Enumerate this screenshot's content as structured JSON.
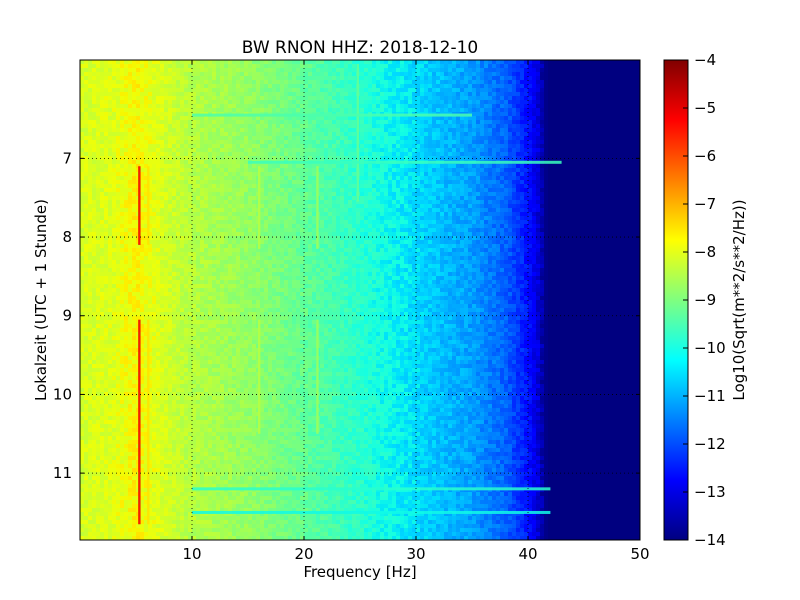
{
  "chart_data": {
    "type": "heatmap",
    "title": "BW RNON HHZ: 2018-12-10",
    "xlabel": "Frequency [Hz]",
    "ylabel": "Lokalzeit (UTC + 1 Stunde)",
    "xlim": [
      0,
      50
    ],
    "ylim": [
      5.75,
      11.85
    ],
    "y_inverted": true,
    "x_ticks": [
      "10",
      "20",
      "30",
      "40",
      "50"
    ],
    "x_tick_values": [
      10,
      20,
      30,
      40,
      50
    ],
    "y_ticks": [
      "7",
      "8",
      "9",
      "10",
      "11"
    ],
    "y_tick_values": [
      7,
      8,
      9,
      10,
      11
    ],
    "grid": true,
    "colormap": "jet",
    "colorbar": {
      "label": "Log10(Sqrt(m**2/s**2/Hz))",
      "range": [
        -14,
        -4
      ],
      "ticks": [
        "−4",
        "−5",
        "−6",
        "−7",
        "−8",
        "−9",
        "−10",
        "−11",
        "−12",
        "−13",
        "−14"
      ],
      "tick_values": [
        -4,
        -5,
        -6,
        -7,
        -8,
        -9,
        -10,
        -11,
        -12,
        -13,
        -14
      ]
    },
    "spectrum_profile": {
      "frequency_hz": [
        0,
        3,
        5,
        10,
        15,
        20,
        25,
        30,
        35,
        38,
        40,
        41,
        41.5,
        42,
        45,
        50
      ],
      "log10_amplitude": [
        -7.9,
        -7.8,
        -7.5,
        -8.3,
        -8.7,
        -9.3,
        -10.0,
        -10.6,
        -11.2,
        -11.8,
        -12.6,
        -13.3,
        -13.9,
        -14.0,
        -14.0,
        -14.0
      ]
    },
    "line_features": [
      {
        "frequency_hz": 5.3,
        "from_hour": 7.1,
        "to_hour": 8.1,
        "log10_amplitude": -5.0
      },
      {
        "frequency_hz": 5.3,
        "from_hour": 9.05,
        "to_hour": 11.65,
        "log10_amplitude": -5.0
      },
      {
        "frequency_hz": 6.1,
        "from_hour": 7.1,
        "to_hour": 8.1,
        "log10_amplitude": -7.3
      },
      {
        "frequency_hz": 6.1,
        "from_hour": 9.05,
        "to_hour": 11.65,
        "log10_amplitude": -7.3
      },
      {
        "frequency_hz": 16.0,
        "from_hour": 7.1,
        "to_hour": 8.15,
        "log10_amplitude": -8.3
      },
      {
        "frequency_hz": 16.0,
        "from_hour": 9.05,
        "to_hour": 10.5,
        "log10_amplitude": -8.3
      },
      {
        "frequency_hz": 21.2,
        "from_hour": 7.1,
        "to_hour": 8.15,
        "log10_amplitude": -8.6
      },
      {
        "frequency_hz": 21.2,
        "from_hour": 9.05,
        "to_hour": 10.5,
        "log10_amplitude": -8.6
      },
      {
        "frequency_hz": 24.8,
        "from_hour": 5.8,
        "to_hour": 7.55,
        "log10_amplitude": -9.3
      }
    ],
    "band_features": [
      {
        "hour": 6.45,
        "from_hz": 10,
        "to_hz": 35,
        "log10_amplitude": -9.6
      },
      {
        "hour": 7.05,
        "from_hz": 15,
        "to_hz": 43,
        "log10_amplitude": -9.8
      },
      {
        "hour": 11.2,
        "from_hz": 10,
        "to_hz": 42,
        "log10_amplitude": -10.0
      },
      {
        "hour": 11.5,
        "from_hz": 10,
        "to_hz": 42,
        "log10_amplitude": -10.3
      }
    ]
  }
}
